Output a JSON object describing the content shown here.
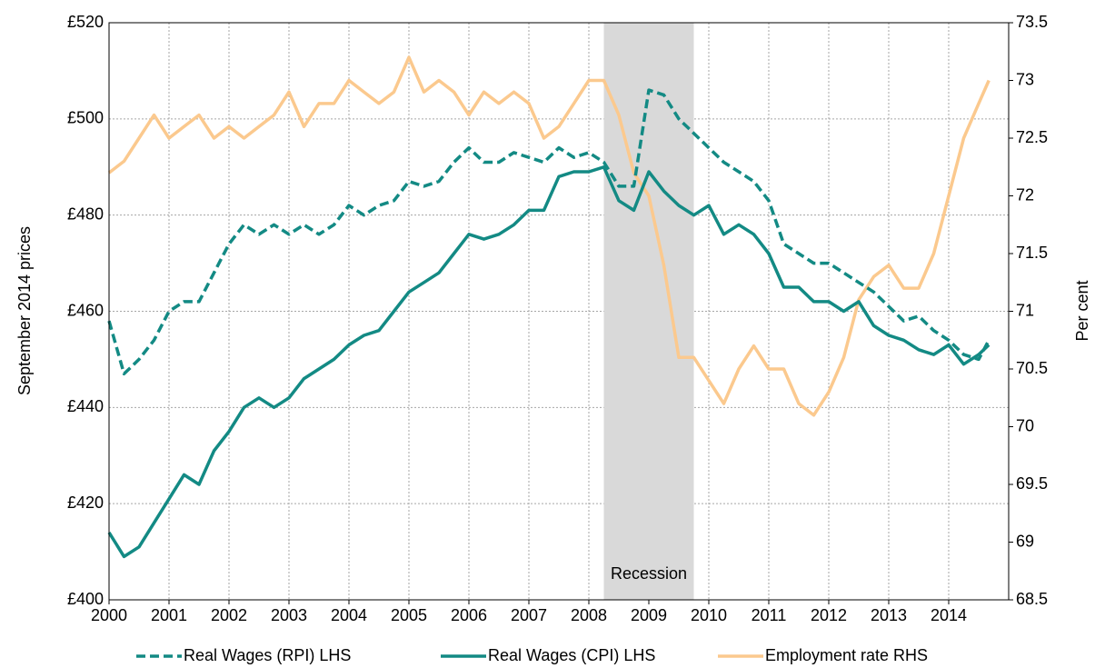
{
  "chart_data": {
    "type": "line",
    "y_label": "September 2014 prices",
    "y2_label": "Per cent",
    "annotation": {
      "text": "Recession",
      "range": [
        2008.25,
        2009.75
      ],
      "color": "#d9d9d9"
    },
    "x": [
      2000,
      2000.25,
      2000.5,
      2000.75,
      2001,
      2001.25,
      2001.5,
      2001.75,
      2002,
      2002.25,
      2002.5,
      2002.75,
      2003,
      2003.25,
      2003.5,
      2003.75,
      2004,
      2004.25,
      2004.5,
      2004.75,
      2005,
      2005.25,
      2005.5,
      2005.75,
      2006,
      2006.25,
      2006.5,
      2006.75,
      2007,
      2007.25,
      2007.5,
      2007.75,
      2008,
      2008.25,
      2008.5,
      2008.75,
      2009,
      2009.25,
      2009.5,
      2009.75,
      2010,
      2010.25,
      2010.5,
      2010.75,
      2011,
      2011.25,
      2011.5,
      2011.75,
      2012,
      2012.25,
      2012.5,
      2012.75,
      2013,
      2013.25,
      2013.5,
      2013.75,
      2014,
      2014.25,
      2014.5,
      2014.67
    ],
    "series": [
      {
        "name": "Real Wages (RPI) LHS",
        "color": "#138a84",
        "dashed": true,
        "axis": "y",
        "values": [
          458,
          447,
          450,
          454,
          460,
          462,
          462,
          468,
          474,
          478,
          476,
          478,
          476,
          478,
          476,
          478,
          482,
          480,
          482,
          483,
          487,
          486,
          487,
          491,
          494,
          491,
          491,
          493,
          492,
          491,
          494,
          492,
          493,
          491,
          486,
          486,
          506,
          505,
          500,
          497,
          494,
          491,
          489,
          487,
          483,
          474,
          472,
          470,
          470,
          468,
          466,
          464,
          461,
          458,
          459,
          456,
          454,
          451,
          450,
          454
        ]
      },
      {
        "name": "Real Wages (CPI) LHS",
        "color": "#138a84",
        "dashed": false,
        "axis": "y",
        "values": [
          414,
          409,
          411,
          416,
          421,
          426,
          424,
          431,
          435,
          440,
          442,
          440,
          442,
          446,
          448,
          450,
          453,
          455,
          456,
          460,
          464,
          466,
          468,
          472,
          476,
          475,
          476,
          478,
          481,
          481,
          488,
          489,
          489,
          490,
          483,
          481,
          489,
          485,
          482,
          480,
          482,
          476,
          478,
          476,
          472,
          465,
          465,
          462,
          462,
          460,
          462,
          457,
          455,
          454,
          452,
          451,
          453,
          449,
          451,
          453
        ]
      },
      {
        "name": "Employment rate RHS",
        "color": "#fbc98e",
        "dashed": false,
        "axis": "y2",
        "values": [
          72.2,
          72.3,
          72.5,
          72.7,
          72.5,
          72.6,
          72.7,
          72.5,
          72.6,
          72.5,
          72.6,
          72.7,
          72.9,
          72.6,
          72.8,
          72.8,
          73.0,
          72.9,
          72.8,
          72.9,
          73.2,
          72.9,
          73.0,
          72.9,
          72.7,
          72.9,
          72.8,
          72.9,
          72.8,
          72.5,
          72.6,
          72.8,
          73.0,
          73.0,
          72.7,
          72.2,
          72.0,
          71.4,
          70.6,
          70.6,
          70.4,
          70.2,
          70.5,
          70.7,
          70.5,
          70.5,
          70.2,
          70.1,
          70.3,
          70.6,
          71.1,
          71.3,
          71.4,
          71.2,
          71.2,
          71.5,
          72.0,
          72.5,
          72.8,
          73.0
        ]
      }
    ],
    "xlim": [
      2000,
      2015
    ],
    "xticks": [
      2000,
      2001,
      2002,
      2003,
      2004,
      2005,
      2006,
      2007,
      2008,
      2009,
      2010,
      2011,
      2012,
      2013,
      2014
    ],
    "ylim": [
      400,
      520
    ],
    "yticks": [
      {
        "value": 400,
        "label": "£400"
      },
      {
        "value": 420,
        "label": "£420"
      },
      {
        "value": 440,
        "label": "£440"
      },
      {
        "value": 460,
        "label": "£460"
      },
      {
        "value": 480,
        "label": "£480"
      },
      {
        "value": 500,
        "label": "£500"
      },
      {
        "value": 520,
        "label": "£520"
      }
    ],
    "y2lim": [
      68.5,
      73.5
    ],
    "y2ticks": [
      68.5,
      69,
      69.5,
      70,
      70.5,
      71,
      71.5,
      72,
      72.5,
      73,
      73.5
    ],
    "grid": true
  }
}
